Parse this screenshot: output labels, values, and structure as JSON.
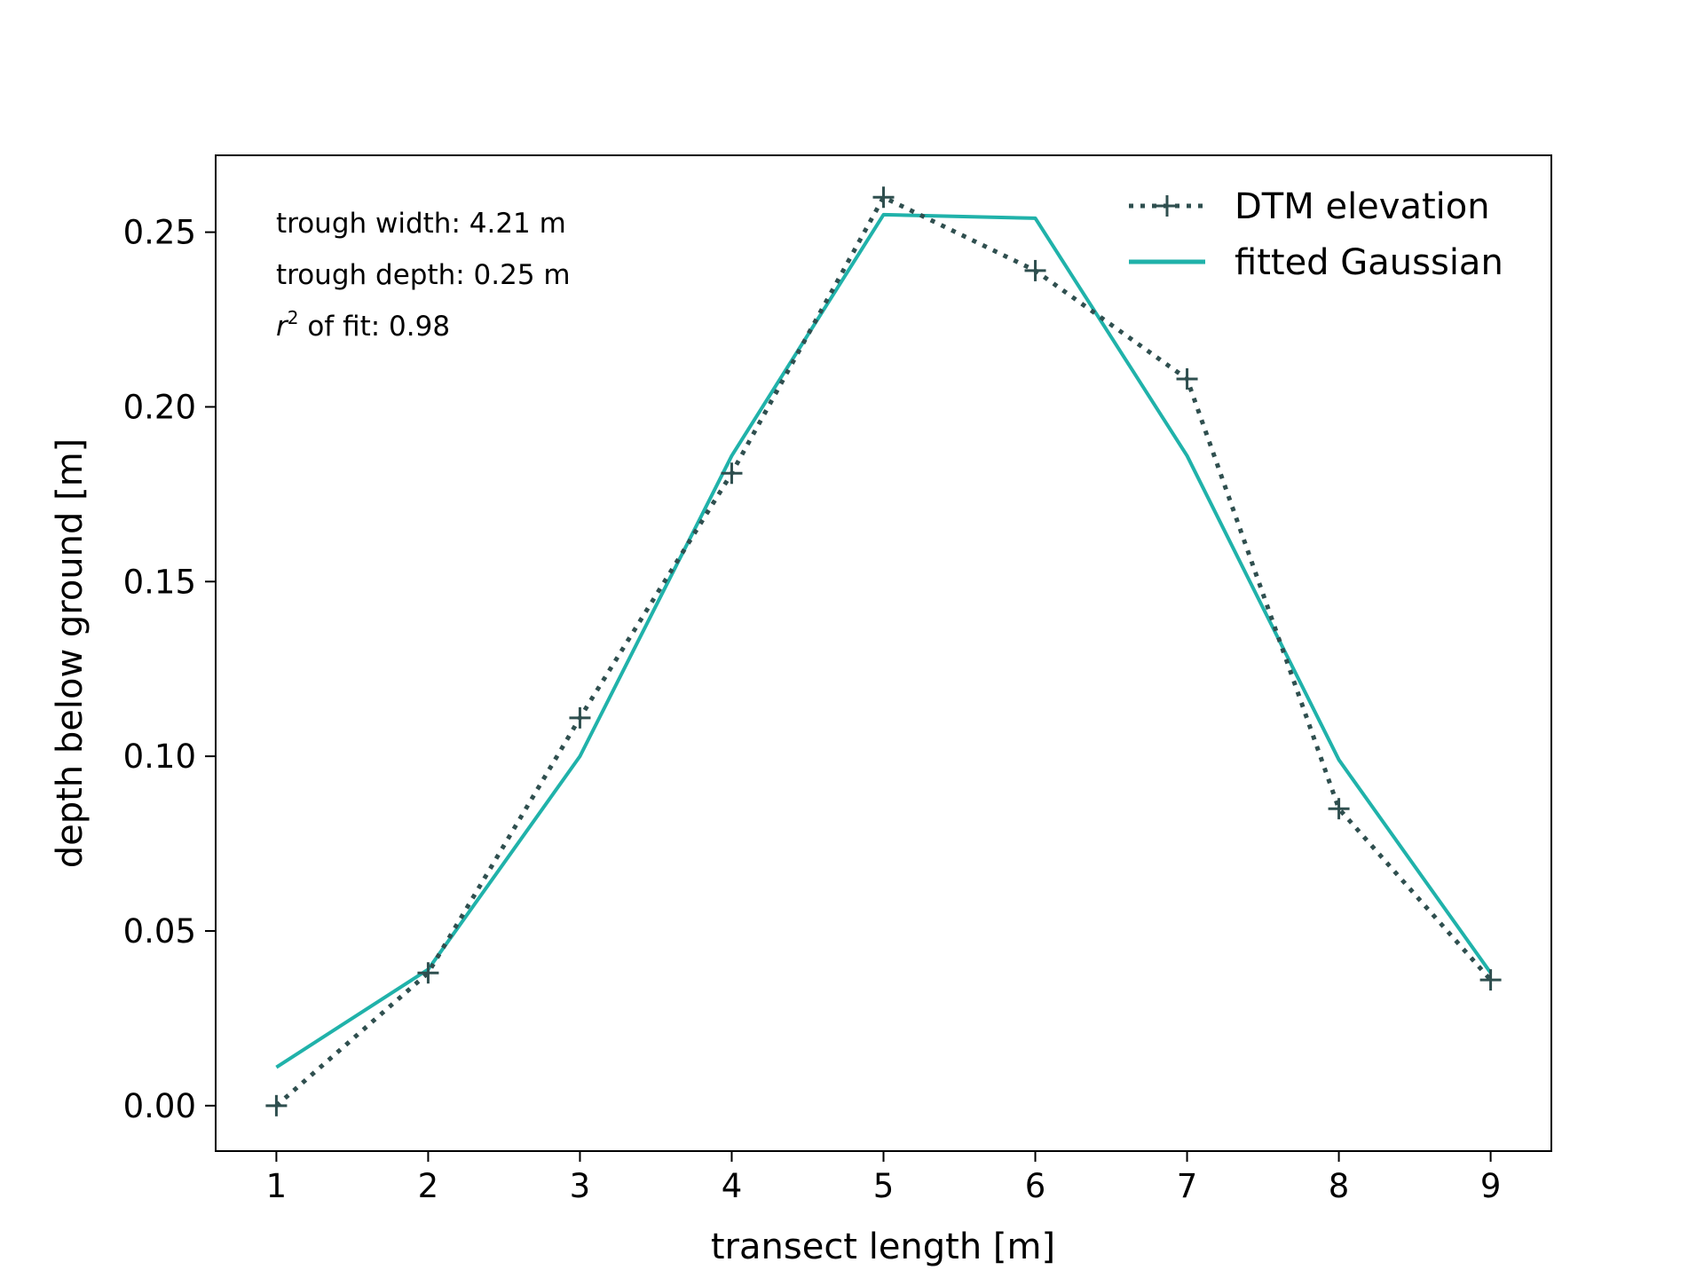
{
  "chart_data": {
    "type": "line",
    "title": "",
    "xlabel": "transect length [m]",
    "ylabel": "depth below ground [m]",
    "xlim": [
      0.6,
      9.4
    ],
    "ylim": [
      -0.013,
      0.272
    ],
    "x_ticks": [
      1,
      2,
      3,
      4,
      5,
      6,
      7,
      8,
      9
    ],
    "x_tick_labels": [
      "1",
      "2",
      "3",
      "4",
      "5",
      "6",
      "7",
      "8",
      "9"
    ],
    "y_ticks": [
      0.0,
      0.05,
      0.1,
      0.15,
      0.2,
      0.25
    ],
    "y_tick_labels": [
      "0.00",
      "0.05",
      "0.10",
      "0.15",
      "0.20",
      "0.25"
    ],
    "grid": false,
    "legend_position": "top-right",
    "x": [
      1,
      2,
      3,
      4,
      5,
      6,
      7,
      8,
      9
    ],
    "series": [
      {
        "name": "DTM elevation",
        "values": [
          0.0,
          0.038,
          0.111,
          0.181,
          0.26,
          0.239,
          0.208,
          0.085,
          0.036
        ],
        "color": "#2f4f4f",
        "line_style": "dotted",
        "marker": "plus"
      },
      {
        "name": "fitted Gaussian",
        "values": [
          0.011,
          0.039,
          0.1,
          0.186,
          0.255,
          0.254,
          0.186,
          0.099,
          0.038
        ],
        "color": "#20b2aa",
        "line_style": "solid",
        "marker": "none"
      }
    ],
    "annotations": [
      {
        "text": "trough width: 4.21 m"
      },
      {
        "text": "trough depth: 0.25 m"
      },
      {
        "prefix": "r",
        "superscript": "2",
        "text": " of fit: 0.98"
      }
    ]
  }
}
